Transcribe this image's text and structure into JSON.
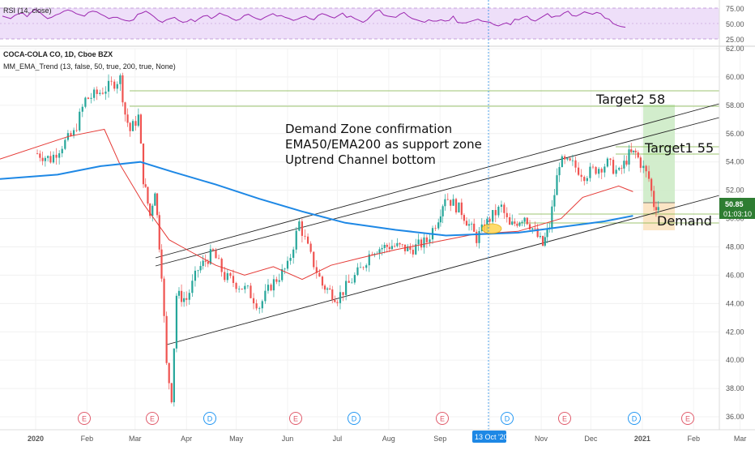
{
  "rsi_panel": {
    "label": "RSI (14, close)",
    "y_ticks": [
      "75.00",
      "50.00",
      "25.00"
    ],
    "fill_color": "#ead7f7",
    "line_color": "#9c27b0",
    "values": [
      62,
      60,
      58,
      63,
      66,
      67,
      61,
      68,
      73,
      69,
      63,
      58,
      60,
      64,
      66,
      70,
      72,
      70,
      66,
      64,
      62,
      68,
      70,
      69,
      65,
      62,
      58,
      60,
      60,
      57,
      55,
      54,
      56,
      65,
      67,
      70,
      66,
      61,
      55,
      52,
      56,
      58,
      60,
      55,
      52,
      53,
      57,
      53,
      58,
      62,
      63,
      58,
      62,
      67,
      64,
      62,
      58,
      55,
      57,
      63,
      65,
      61,
      58,
      56,
      60,
      63,
      66,
      62,
      63,
      60,
      58,
      55,
      57,
      60,
      62,
      58,
      56,
      63,
      66,
      64,
      61,
      59,
      63,
      67,
      60,
      62,
      58,
      55,
      52,
      56,
      63,
      70,
      72,
      64,
      62,
      61,
      60,
      65,
      68,
      62,
      58,
      56,
      54,
      52,
      56,
      54,
      54,
      56,
      54,
      55,
      62,
      52,
      51,
      51,
      53,
      55,
      57,
      54,
      53,
      52,
      48,
      46,
      49,
      51,
      48,
      57,
      56,
      60,
      62,
      56,
      54,
      58,
      62,
      66,
      60,
      62,
      62,
      67,
      70,
      63,
      62,
      65,
      69,
      67,
      65,
      68,
      66,
      59,
      57,
      50,
      47,
      45,
      44
    ]
  },
  "price_panel": {
    "title": "COCA-COLA CO, 1D, Cboe BZX",
    "indicator": "MM_EMA_Trend (13, false, 50, true, 200, true, None)",
    "y_ticks": [
      "62.00",
      "60.00",
      "58.00",
      "56.00",
      "54.00",
      "52.00",
      "50.00",
      "48.00",
      "46.00",
      "44.00",
      "42.00",
      "40.00",
      "38.00",
      "36.00"
    ],
    "price_label": "50.85",
    "countdown_label": "01:03:10",
    "accent_color": "#2e7d32"
  },
  "time_axis": {
    "labels": [
      "2020",
      "Feb",
      "Mar",
      "Apr",
      "May",
      "Jun",
      "Jul",
      "Aug",
      "Sep",
      "Oct",
      "Nov",
      "Dec",
      "2021",
      "Feb",
      "Mar"
    ],
    "crosshair_label": "13 Oct '20"
  },
  "event_markers": [
    {
      "letter": "E",
      "color": "#e05a6a"
    },
    {
      "letter": "E",
      "color": "#e05a6a"
    },
    {
      "letter": "D",
      "color": "#2196f3"
    },
    {
      "letter": "E",
      "color": "#e05a6a"
    },
    {
      "letter": "D",
      "color": "#2196f3"
    },
    {
      "letter": "E",
      "color": "#e05a6a"
    },
    {
      "letter": "D",
      "color": "#2196f3"
    },
    {
      "letter": "E",
      "color": "#e05a6a"
    },
    {
      "letter": "D",
      "color": "#2196f3"
    },
    {
      "letter": "E",
      "color": "#e05a6a"
    },
    {
      "letter": "E",
      "color": "#e05a6a"
    }
  ],
  "annotations": {
    "note_lines": [
      "Demand Zone confirmation",
      "EMA50/EMA200 as support zone",
      "Uptrend Channel bottom"
    ],
    "target2": "Target2 58",
    "target1": "Target1 55",
    "demand": "Demand"
  },
  "chart_data": {
    "type": "candlestick",
    "title": "COCA-COLA CO, 1D, Cboe BZX",
    "x_range": [
      "2020-01-01",
      "2021-03-10"
    ],
    "ylim": [
      35.2,
      62.0
    ],
    "close_series": [
      [
        "2020-01-02",
        54.6
      ],
      [
        "2020-01-10",
        54.2
      ],
      [
        "2020-01-17",
        55.2
      ],
      [
        "2020-01-24",
        56.0
      ],
      [
        "2020-01-31",
        58.4
      ],
      [
        "2020-02-07",
        58.8
      ],
      [
        "2020-02-14",
        59.3
      ],
      [
        "2020-02-21",
        59.9
      ],
      [
        "2020-02-24",
        57.4
      ],
      [
        "2020-02-27",
        56.2
      ],
      [
        "2020-03-03",
        57.2
      ],
      [
        "2020-03-06",
        52.8
      ],
      [
        "2020-03-10",
        50.2
      ],
      [
        "2020-03-13",
        52.1
      ],
      [
        "2020-03-17",
        46.2
      ],
      [
        "2020-03-20",
        39.6
      ],
      [
        "2020-03-23",
        37.4
      ],
      [
        "2020-03-26",
        44.6
      ],
      [
        "2020-04-01",
        44.3
      ],
      [
        "2020-04-08",
        46.4
      ],
      [
        "2020-04-17",
        47.6
      ],
      [
        "2020-04-24",
        45.9
      ],
      [
        "2020-05-01",
        45.4
      ],
      [
        "2020-05-08",
        44.9
      ],
      [
        "2020-05-15",
        43.8
      ],
      [
        "2020-05-22",
        45.3
      ],
      [
        "2020-06-01",
        46.6
      ],
      [
        "2020-06-08",
        49.7
      ],
      [
        "2020-06-15",
        47.3
      ],
      [
        "2020-06-22",
        45.3
      ],
      [
        "2020-07-01",
        44.4
      ],
      [
        "2020-07-08",
        45.4
      ],
      [
        "2020-07-15",
        46.4
      ],
      [
        "2020-07-22",
        47.8
      ],
      [
        "2020-08-03",
        48.1
      ],
      [
        "2020-08-14",
        47.8
      ],
      [
        "2020-08-24",
        48.4
      ],
      [
        "2020-08-31",
        50.1
      ],
      [
        "2020-09-04",
        51.6
      ],
      [
        "2020-09-14",
        50.5
      ],
      [
        "2020-09-23",
        48.6
      ],
      [
        "2020-10-01",
        50.0
      ],
      [
        "2020-10-08",
        50.8
      ],
      [
        "2020-10-13",
        49.4
      ],
      [
        "2020-10-22",
        50.2
      ],
      [
        "2020-11-02",
        48.1
      ],
      [
        "2020-11-06",
        49.5
      ],
      [
        "2020-11-12",
        54.0
      ],
      [
        "2020-11-20",
        53.8
      ],
      [
        "2020-11-27",
        53.1
      ],
      [
        "2020-12-04",
        53.5
      ],
      [
        "2020-12-11",
        53.9
      ],
      [
        "2020-12-18",
        53.2
      ],
      [
        "2020-12-24",
        54.5
      ],
      [
        "2020-12-28",
        54.6
      ],
      [
        "2020-12-31",
        53.9
      ],
      [
        "2021-01-05",
        52.8
      ],
      [
        "2021-01-08",
        51.0
      ],
      [
        "2021-01-12",
        50.85
      ]
    ],
    "ema50": [
      [
        0,
        54.2
      ],
      [
        0.095,
        55.8
      ],
      [
        0.145,
        56.3
      ],
      [
        0.167,
        53.8
      ],
      [
        0.2,
        51.0
      ],
      [
        0.235,
        48.5
      ],
      [
        0.26,
        47.8
      ],
      [
        0.3,
        46.7
      ],
      [
        0.34,
        46.0
      ],
      [
        0.38,
        46.6
      ],
      [
        0.42,
        45.7
      ],
      [
        0.46,
        46.7
      ],
      [
        0.5,
        47.2
      ],
      [
        0.55,
        47.8
      ],
      [
        0.62,
        48.5
      ],
      [
        0.66,
        48.9
      ],
      [
        0.72,
        49.1
      ],
      [
        0.78,
        50.0
      ],
      [
        0.81,
        51.5
      ],
      [
        0.86,
        52.3
      ],
      [
        0.88,
        51.9
      ]
    ],
    "ema200": [
      [
        0,
        52.8
      ],
      [
        0.08,
        53.1
      ],
      [
        0.14,
        53.7
      ],
      [
        0.195,
        54.0
      ],
      [
        0.24,
        53.3
      ],
      [
        0.3,
        52.4
      ],
      [
        0.36,
        51.4
      ],
      [
        0.42,
        50.5
      ],
      [
        0.48,
        49.7
      ],
      [
        0.55,
        49.2
      ],
      [
        0.62,
        48.8
      ],
      [
        0.72,
        49.0
      ],
      [
        0.78,
        49.4
      ],
      [
        0.84,
        49.8
      ],
      [
        0.88,
        50.2
      ]
    ],
    "levels": [
      {
        "name": "Target2 58",
        "value": 58.0
      },
      {
        "name": "Target1 55",
        "value": 55.0
      },
      {
        "name": "Demand",
        "value": 49.5
      }
    ]
  }
}
